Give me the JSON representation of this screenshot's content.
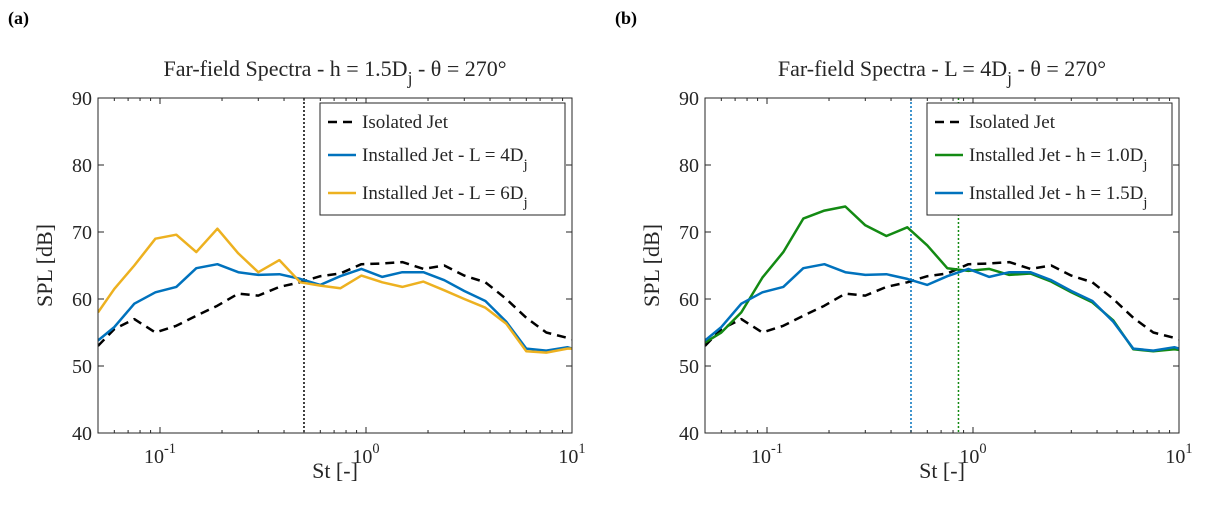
{
  "panels": [
    {
      "label": "(a)",
      "chart_data": {
        "type": "line",
        "title": "Far-field Spectra - h = 1.5D",
        "title_sub": "j",
        "title_tail": " - θ = 270°",
        "xlabel": "St [-]",
        "ylabel": "SPL [dB]",
        "xscale": "log",
        "xlim": [
          0.05,
          10
        ],
        "ylim": [
          40,
          90
        ],
        "yticks": [
          40,
          50,
          60,
          70,
          80,
          90
        ],
        "xticks": [
          {
            "value": 0.1,
            "base": "10",
            "exp": "-1"
          },
          {
            "value": 1,
            "base": "10",
            "exp": "0"
          },
          {
            "value": 10,
            "base": "10",
            "exp": "1"
          }
        ],
        "grid": false,
        "legend_position": "top-right",
        "vlines": [
          {
            "x": 0.5,
            "color": "#000000"
          }
        ],
        "series": [
          {
            "name": "Isolated Jet",
            "color": "#000000",
            "dash": "9,6",
            "x": [
              0.05,
              0.06,
              0.075,
              0.095,
              0.12,
              0.15,
              0.19,
              0.24,
              0.3,
              0.38,
              0.48,
              0.6,
              0.75,
              0.95,
              1.2,
              1.5,
              1.9,
              2.4,
              3.0,
              3.8,
              4.8,
              6.0,
              7.5,
              9.5,
              10
            ],
            "y": [
              53.0,
              55.5,
              57.0,
              55.0,
              56.0,
              57.5,
              59.0,
              60.8,
              60.5,
              61.8,
              62.5,
              63.4,
              63.8,
              65.2,
              65.3,
              65.5,
              64.5,
              65.0,
              63.5,
              62.5,
              60.0,
              57.2,
              55.0,
              54.2,
              54.0
            ]
          },
          {
            "name": "Installed Jet - L = 4D",
            "name_sub": "j",
            "color": "#0072BD",
            "dash": "",
            "x": [
              0.05,
              0.06,
              0.075,
              0.095,
              0.12,
              0.15,
              0.19,
              0.24,
              0.3,
              0.38,
              0.48,
              0.6,
              0.75,
              0.95,
              1.2,
              1.5,
              1.9,
              2.4,
              3.0,
              3.8,
              4.8,
              6.0,
              7.5,
              9.5,
              10
            ],
            "y": [
              53.8,
              55.8,
              59.3,
              61.0,
              61.8,
              64.6,
              65.2,
              64.0,
              63.6,
              63.7,
              63.0,
              62.1,
              63.4,
              64.5,
              63.3,
              64.0,
              64.0,
              62.8,
              61.2,
              59.7,
              56.6,
              52.6,
              52.3,
              52.8,
              52.6
            ]
          },
          {
            "name": "Installed Jet - L = 6D",
            "name_sub": "j",
            "color": "#EDB120",
            "dash": "",
            "x": [
              0.05,
              0.06,
              0.075,
              0.095,
              0.12,
              0.15,
              0.19,
              0.24,
              0.3,
              0.38,
              0.48,
              0.6,
              0.75,
              0.95,
              1.2,
              1.5,
              1.9,
              2.4,
              3.0,
              3.8,
              4.8,
              6.0,
              7.5,
              9.5,
              10
            ],
            "y": [
              58.0,
              61.5,
              65.0,
              69.0,
              69.6,
              67.0,
              70.5,
              66.8,
              64.0,
              65.8,
              62.5,
              62.0,
              61.6,
              63.5,
              62.5,
              61.8,
              62.6,
              61.3,
              60.0,
              58.7,
              56.3,
              52.2,
              52.0,
              52.6,
              52.6
            ]
          }
        ]
      }
    },
    {
      "label": "(b)",
      "chart_data": {
        "type": "line",
        "title": "Far-field Spectra - L = 4D",
        "title_sub": "j",
        "title_tail": " - θ = 270°",
        "xlabel": "St [-]",
        "ylabel": "SPL [dB]",
        "xscale": "log",
        "xlim": [
          0.05,
          10
        ],
        "ylim": [
          40,
          90
        ],
        "yticks": [
          40,
          50,
          60,
          70,
          80,
          90
        ],
        "xticks": [
          {
            "value": 0.1,
            "base": "10",
            "exp": "-1"
          },
          {
            "value": 1,
            "base": "10",
            "exp": "0"
          },
          {
            "value": 10,
            "base": "10",
            "exp": "1"
          }
        ],
        "grid": false,
        "legend_position": "top-right",
        "vlines": [
          {
            "x": 0.5,
            "color": "#0072BD"
          },
          {
            "x": 0.85,
            "color": "#138A13"
          }
        ],
        "series": [
          {
            "name": "Isolated Jet",
            "color": "#000000",
            "dash": "9,6",
            "x": [
              0.05,
              0.06,
              0.075,
              0.095,
              0.12,
              0.15,
              0.19,
              0.24,
              0.3,
              0.38,
              0.48,
              0.6,
              0.75,
              0.95,
              1.2,
              1.5,
              1.9,
              2.4,
              3.0,
              3.8,
              4.8,
              6.0,
              7.5,
              9.5,
              10
            ],
            "y": [
              53.0,
              55.5,
              57.0,
              55.0,
              56.0,
              57.5,
              59.0,
              60.8,
              60.5,
              61.8,
              62.5,
              63.4,
              63.8,
              65.2,
              65.3,
              65.5,
              64.5,
              65.0,
              63.5,
              62.5,
              60.0,
              57.2,
              55.0,
              54.2,
              54.0
            ]
          },
          {
            "name": "Installed Jet - h = 1.0D",
            "name_sub": "j",
            "color": "#138A13",
            "dash": "",
            "x": [
              0.05,
              0.06,
              0.075,
              0.095,
              0.12,
              0.15,
              0.19,
              0.24,
              0.3,
              0.38,
              0.48,
              0.6,
              0.75,
              0.95,
              1.2,
              1.5,
              1.9,
              2.4,
              3.0,
              3.8,
              4.8,
              6.0,
              7.5,
              9.5,
              10
            ],
            "y": [
              53.5,
              55.0,
              58.0,
              63.2,
              67.0,
              72.0,
              73.2,
              73.8,
              71.0,
              69.4,
              70.7,
              68.0,
              64.6,
              64.2,
              64.5,
              63.6,
              63.8,
              62.6,
              61.0,
              59.5,
              56.8,
              52.5,
              52.2,
              52.5,
              52.4
            ]
          },
          {
            "name": "Installed Jet - h = 1.5D",
            "name_sub": "j",
            "color": "#0072BD",
            "dash": "",
            "x": [
              0.05,
              0.06,
              0.075,
              0.095,
              0.12,
              0.15,
              0.19,
              0.24,
              0.3,
              0.38,
              0.48,
              0.6,
              0.75,
              0.95,
              1.2,
              1.5,
              1.9,
              2.4,
              3.0,
              3.8,
              4.8,
              6.0,
              7.5,
              9.5,
              10
            ],
            "y": [
              53.8,
              55.8,
              59.3,
              61.0,
              61.8,
              64.6,
              65.2,
              64.0,
              63.6,
              63.7,
              63.0,
              62.1,
              63.4,
              64.5,
              63.3,
              64.0,
              64.0,
              62.8,
              61.2,
              59.7,
              56.6,
              52.6,
              52.3,
              52.8,
              52.6
            ]
          }
        ]
      }
    }
  ]
}
